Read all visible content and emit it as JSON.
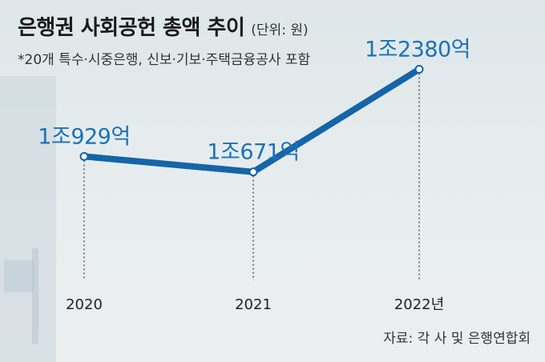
{
  "header": {
    "title": "은행권 사회공헌 총액 추이",
    "unit": "(단위: 원)",
    "note": "*20개 특수·시중은행, 신보·기보·주택금융공사 포함"
  },
  "footer": {
    "source": "자료: 각 사 및 은행연합회"
  },
  "colors": {
    "line": "#1565a8",
    "value_label": "#1a72b8",
    "point_fill": "#ffffff"
  },
  "chart_data": {
    "type": "line",
    "title": "은행권 사회공헌 총액 추이",
    "unit": "(단위: 원)",
    "x": [
      "2020",
      "2021",
      "2022"
    ],
    "x_tick_labels": [
      "2020",
      "2021",
      "2022년"
    ],
    "values": [
      1092900000000,
      1067100000000,
      1238000000000
    ],
    "value_labels": [
      "1조929억",
      "1조671억",
      "1조2380억"
    ],
    "ylim": [
      900000000000,
      1300000000000
    ],
    "grid": false,
    "legend": "none"
  }
}
